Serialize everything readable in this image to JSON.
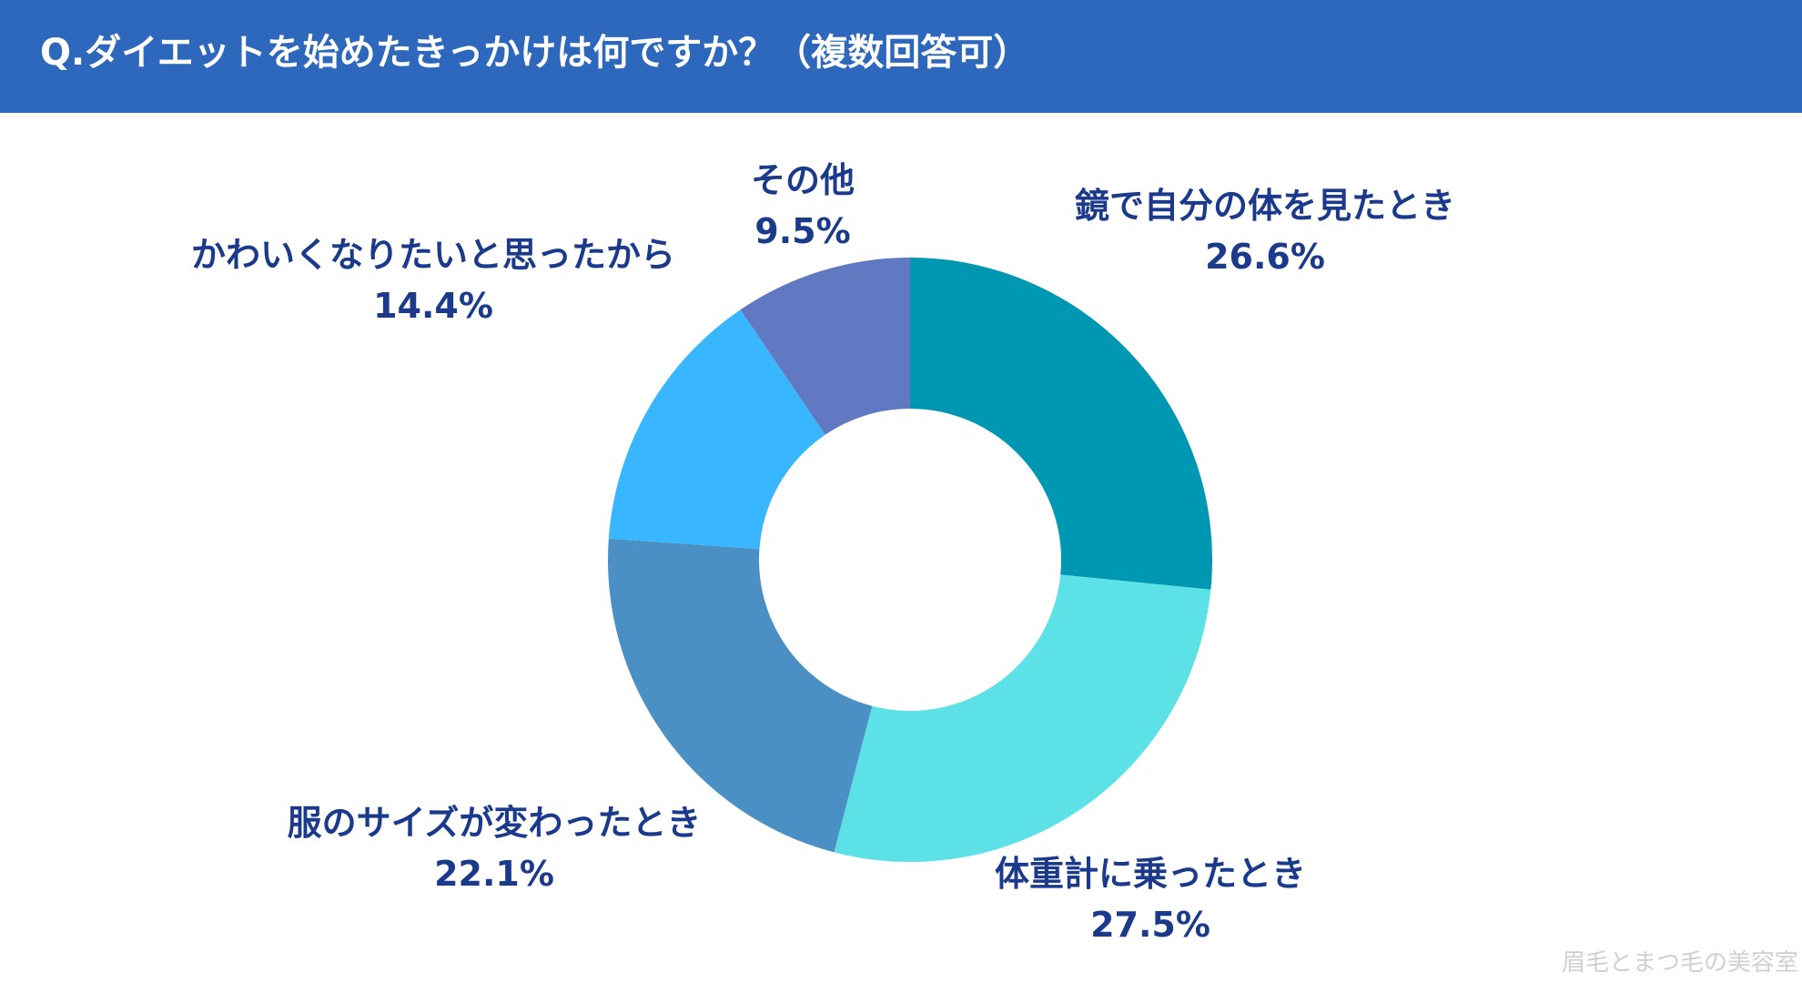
{
  "header": {
    "title": "Q.ダイエットを始めたきっかけは何ですか？（複数回答可）",
    "background": "#2d68bd"
  },
  "chart_data": {
    "type": "donut",
    "title": "Q.ダイエットを始めたきっかけは何ですか？（複数回答可）",
    "unit": "%",
    "start": "12 o'clock",
    "direction": "clockwise",
    "slices": [
      {
        "label": "鏡で自分の体を見たとき",
        "value": 26.6,
        "value_text": "26.6%",
        "color": "#0097b2"
      },
      {
        "label": "体重計に乗ったとき",
        "value": 27.5,
        "value_text": "27.5%",
        "color": "#5ce1e6"
      },
      {
        "label": "服のサイズが変わったとき",
        "value": 22.1,
        "value_text": "22.1%",
        "color": "#4a90c5"
      },
      {
        "label": "かわいくなりたいと思ったから",
        "value": 14.4,
        "value_text": "14.4%",
        "color": "#38b6ff"
      },
      {
        "label": "その他",
        "value": 9.5,
        "value_text": "9.5%",
        "color": "#6178c2"
      }
    ]
  },
  "watermark": "眉毛とまつ毛の美容室"
}
